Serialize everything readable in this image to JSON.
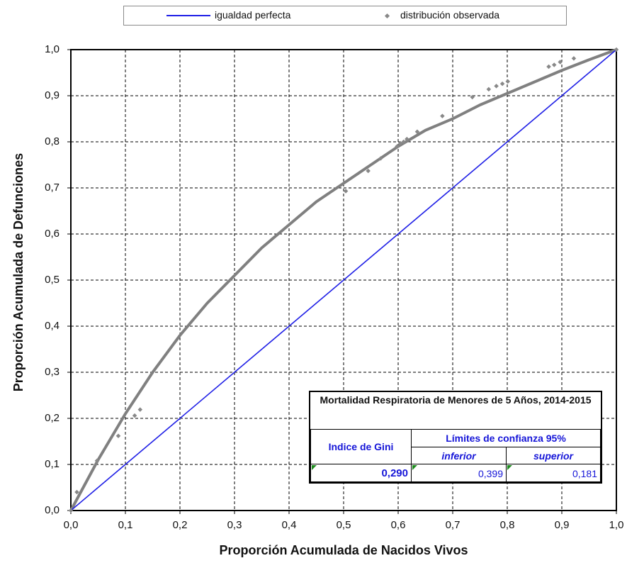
{
  "legend": {
    "perfect_label": "igualdad perfecta",
    "observed_label": "distribución observada",
    "colors": {
      "perfect": "#1f1fe6",
      "observed": "#888888",
      "curve": "#808080"
    }
  },
  "chart_data": {
    "type": "scatter",
    "xlabel": "Proporción Acumulada de Nacidos Vivos",
    "ylabel": "Proporción Acumulada de Defunciones",
    "xlim": [
      0,
      1
    ],
    "ylim": [
      0,
      1
    ],
    "x_ticks": [
      "0,0",
      "0,1",
      "0,2",
      "0,3",
      "0,4",
      "0,5",
      "0,6",
      "0,7",
      "0,8",
      "0,9",
      "1,0"
    ],
    "y_ticks": [
      "0,0",
      "0,1",
      "0,2",
      "0,3",
      "0,4",
      "0,5",
      "0,6",
      "0,7",
      "0,8",
      "0,9",
      "1,0"
    ],
    "grid": true,
    "legend_position": "top",
    "series": [
      {
        "name": "igualdad perfecta",
        "type": "line",
        "x": [
          0,
          1
        ],
        "y": [
          0,
          1
        ]
      },
      {
        "name": "distribución observada",
        "type": "scatter",
        "x": [
          0.0,
          0.011,
          0.048,
          0.087,
          0.117,
          0.127,
          0.504,
          0.545,
          0.568,
          0.598,
          0.604,
          0.61,
          0.616,
          0.635,
          0.681,
          0.736,
          0.766,
          0.78,
          0.791,
          0.801,
          0.876,
          0.886,
          0.897,
          0.922,
          1.0
        ],
        "y": [
          0.0,
          0.04,
          0.108,
          0.162,
          0.206,
          0.219,
          0.693,
          0.737,
          0.764,
          0.79,
          0.797,
          0.8,
          0.806,
          0.822,
          0.856,
          0.897,
          0.914,
          0.921,
          0.926,
          0.931,
          0.963,
          0.967,
          0.973,
          0.981,
          1.0
        ]
      },
      {
        "type": "line",
        "fitted": true,
        "x": [
          0,
          0.05,
          0.1,
          0.15,
          0.2,
          0.25,
          0.3,
          0.35,
          0.4,
          0.45,
          0.5,
          0.55,
          0.6,
          0.65,
          0.7,
          0.75,
          0.8,
          0.85,
          0.9,
          0.95,
          1.0
        ],
        "y": [
          0,
          0.11,
          0.21,
          0.3,
          0.38,
          0.45,
          0.51,
          0.57,
          0.62,
          0.67,
          0.71,
          0.75,
          0.79,
          0.825,
          0.85,
          0.88,
          0.905,
          0.93,
          0.955,
          0.978,
          1.0
        ]
      }
    ]
  },
  "stats": {
    "title": "Mortalidad Respiratoria de Menores de 5 Años, 2014-2015",
    "gini_label": "Indice de Gini",
    "ci_label": "Límites de confianza 95%",
    "lower_label": "inferior",
    "upper_label": "superior",
    "gini_value": "0,290",
    "lower_value": "0,399",
    "upper_value": "0,181"
  }
}
